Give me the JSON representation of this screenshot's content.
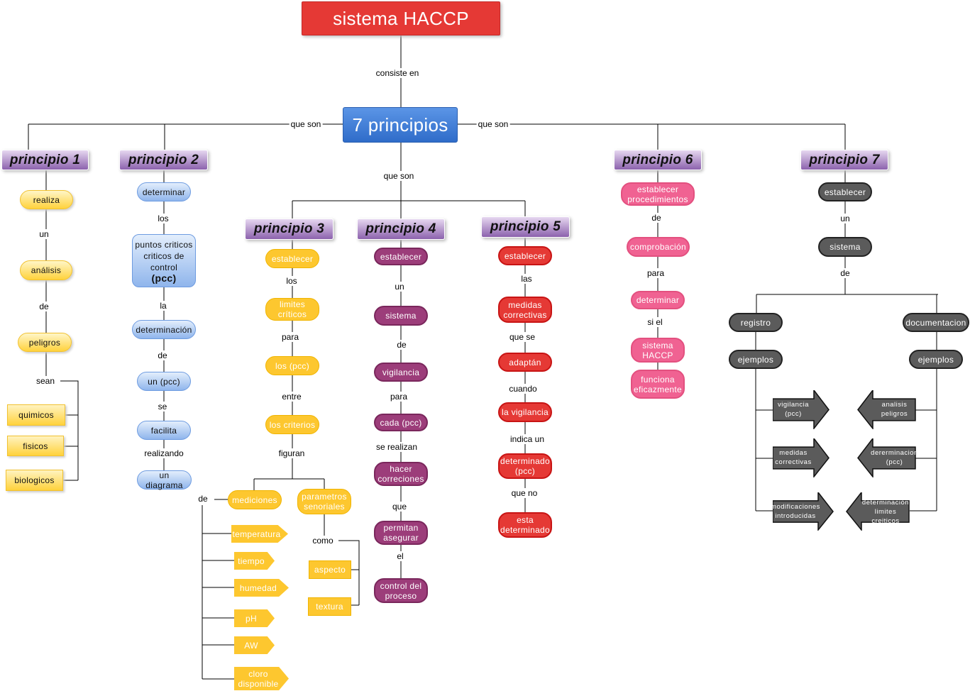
{
  "title": "sistema HACCP",
  "root": "7 principios",
  "root_link": "consiste en",
  "que_son_left": "que son",
  "que_son_right": "que son",
  "que_son_center": "que son",
  "p1": {
    "header": "principio 1",
    "nodes": [
      "realiza",
      "análisis",
      "peligros"
    ],
    "links": [
      "un",
      "de",
      "sean"
    ],
    "types": [
      "quimicos",
      "fisicos",
      "biologicos"
    ]
  },
  "p2": {
    "header": "principio 2",
    "nodes": [
      "determinar",
      "puntos criticos criticos de control",
      "determinación",
      "un (pcc)",
      "facilita",
      "un diagrama"
    ],
    "pcc": "(pcc)",
    "links": [
      "los",
      "la",
      "de",
      "se",
      "realizando"
    ]
  },
  "p3": {
    "header": "principio 3",
    "nodes": [
      "establecer",
      "limites críticos",
      "los (pcc)",
      "los criterios",
      "mediciones",
      "parametros senoriales"
    ],
    "links": [
      "los",
      "para",
      "entre",
      "figuran",
      "de",
      "como"
    ],
    "measurements": [
      "temperatura",
      "tiempo",
      "humedad",
      "pH",
      "AW",
      "cloro disponible"
    ],
    "sensory": [
      "aspecto",
      "textura"
    ]
  },
  "p4": {
    "header": "principio 4",
    "nodes": [
      "establecer",
      "sistema",
      "vigilancia",
      "cada (pcc)",
      "hacer correciones",
      "permitan asegurar",
      "control del proceso"
    ],
    "links": [
      "un",
      "de",
      "para",
      "se realizan",
      "que",
      "el"
    ]
  },
  "p5": {
    "header": "principio 5",
    "nodes": [
      "establecer",
      "medidas correctivas",
      "adaptán",
      "la vigilancia",
      "determinado (pcc)",
      "esta determinado"
    ],
    "links": [
      "las",
      "que se",
      "cuando",
      "indica un",
      "que no"
    ]
  },
  "p6": {
    "header": "principio 6",
    "nodes": [
      "establecer procedimientos",
      "comprobación",
      "determinar",
      "sistema HACCP",
      "funciona eficazmente"
    ],
    "links": [
      "de",
      "para",
      "si el"
    ]
  },
  "p7": {
    "header": "principio 7",
    "nodes": [
      "establecer",
      "sistema",
      "registro",
      "documentacion",
      "ejemplos",
      "ejemplos"
    ],
    "links": [
      "un",
      "de"
    ],
    "registro_examples": [
      "vigilancia (pcc)",
      "medidas correctivas",
      "modificaciones introducidas"
    ],
    "documentacion_examples": [
      "analisis peligros",
      "dererminacion (pcc)",
      "determinación limites creiticos"
    ]
  },
  "colors": {
    "title": "#e53935",
    "root": "#2f6cc9",
    "header": "#8c62ad",
    "p1": "#ffd23c",
    "p2": "#8fb5ec",
    "p3": "#fdc72f",
    "p4": "#9c3d7a",
    "p5": "#e53935",
    "p6": "#f06292",
    "p7": "#5b5b5b"
  }
}
